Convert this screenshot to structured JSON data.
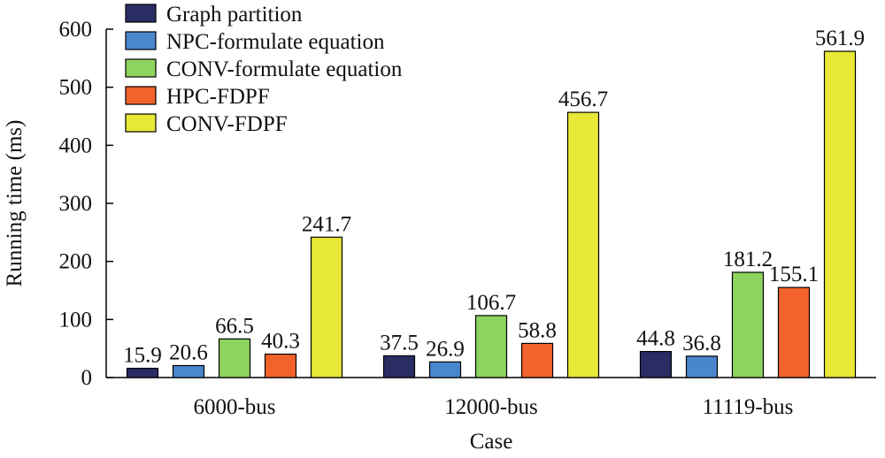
{
  "chart_data": {
    "type": "bar",
    "title": "",
    "xlabel": "Case",
    "ylabel": "Running time (ms)",
    "ylim": [
      0,
      600
    ],
    "yticks": [
      0,
      100,
      200,
      300,
      400,
      500,
      600
    ],
    "categories": [
      "6000-bus",
      "12000-bus",
      "11119-bus"
    ],
    "series": [
      {
        "name": "Graph partition",
        "values": [
          15.9,
          37.5,
          44.8
        ],
        "color": "#2a2d64"
      },
      {
        "name": "NPC-formulate equation",
        "values": [
          20.6,
          26.9,
          36.8
        ],
        "color": "#4a86cc"
      },
      {
        "name": "CONV-formulate equation",
        "values": [
          66.5,
          106.7,
          181.2
        ],
        "color": "#8dd35f"
      },
      {
        "name": "HPC-FDPF",
        "values": [
          40.3,
          58.8,
          155.1
        ],
        "color": "#f2622a"
      },
      {
        "name": "CONV-FDPF",
        "values": [
          241.7,
          456.7,
          561.9
        ],
        "color": "#e8e838"
      }
    ],
    "data_labels": [
      [
        "15.9",
        "20.6",
        "66.5",
        "40.3",
        "241.7"
      ],
      [
        "37.5",
        "26.9",
        "106.7",
        "58.8",
        "456.7"
      ],
      [
        "44.8",
        "36.8",
        "181.2",
        "155.1",
        "561.9"
      ]
    ],
    "legend_position": "top-left",
    "grid": false
  }
}
